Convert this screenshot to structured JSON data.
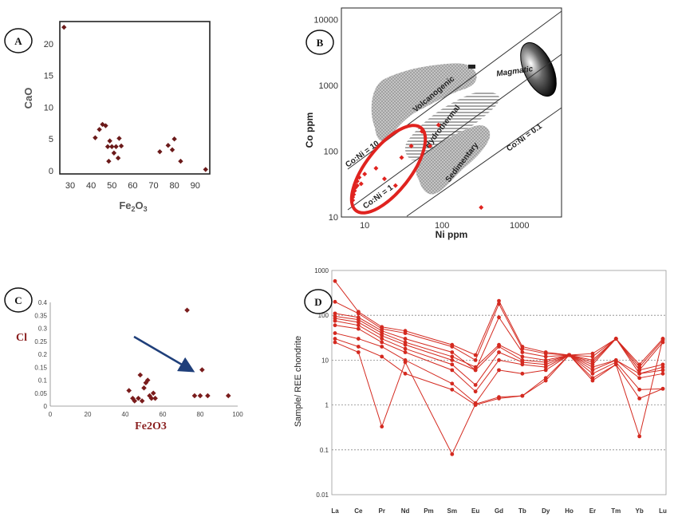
{
  "chart_data": [
    {
      "panel": "A",
      "type": "scatter",
      "xlabel": "Fe2O3",
      "ylabel": "CaO",
      "xlim": [
        25,
        97
      ],
      "ylim": [
        -0.5,
        23.5
      ],
      "xticks": [
        30,
        40,
        50,
        60,
        70,
        80,
        90
      ],
      "yticks": [
        0,
        5,
        10,
        15,
        20
      ],
      "marker_color": "#6b1a1a",
      "points": [
        {
          "x": 27,
          "y": 22.6
        },
        {
          "x": 42,
          "y": 5.2
        },
        {
          "x": 44,
          "y": 6.5
        },
        {
          "x": 45.5,
          "y": 7.3
        },
        {
          "x": 47,
          "y": 7.1
        },
        {
          "x": 48,
          "y": 3.8
        },
        {
          "x": 48.5,
          "y": 1.5
        },
        {
          "x": 49,
          "y": 4.7
        },
        {
          "x": 50,
          "y": 3.8
        },
        {
          "x": 51,
          "y": 2.8
        },
        {
          "x": 52,
          "y": 3.8
        },
        {
          "x": 53.5,
          "y": 5.1
        },
        {
          "x": 54.5,
          "y": 3.9
        },
        {
          "x": 53,
          "y": 2.0
        },
        {
          "x": 73,
          "y": 3.0
        },
        {
          "x": 77,
          "y": 4.0
        },
        {
          "x": 79,
          "y": 3.3
        },
        {
          "x": 80,
          "y": 5.0
        },
        {
          "x": 83,
          "y": 1.5
        },
        {
          "x": 95,
          "y": 0.2
        }
      ]
    },
    {
      "panel": "B",
      "type": "scatter",
      "xlabel": "Ni ppm",
      "ylabel": "Co ppm",
      "log_x": true,
      "log_y": true,
      "xlim": [
        5,
        3500
      ],
      "ylim": [
        10,
        15000
      ],
      "xticks": [
        10,
        100,
        1000
      ],
      "yticks": [
        10,
        100,
        1000,
        10000
      ],
      "fields": [
        "Volcanogenic",
        "Hydrothermal",
        "Sedimentary",
        "Magmatic"
      ],
      "ratio_lines": [
        "Co:Ni = 10",
        "Co:Ni = 1",
        "Co:Ni = 0.1"
      ],
      "marker_color": "#e0231f",
      "points": [
        {
          "x": 7,
          "y": 18
        },
        {
          "x": 7,
          "y": 20
        },
        {
          "x": 7.2,
          "y": 22
        },
        {
          "x": 7.4,
          "y": 25
        },
        {
          "x": 7.6,
          "y": 28
        },
        {
          "x": 8,
          "y": 30
        },
        {
          "x": 8,
          "y": 35
        },
        {
          "x": 8.5,
          "y": 40
        },
        {
          "x": 9,
          "y": 32
        },
        {
          "x": 10,
          "y": 45
        },
        {
          "x": 14,
          "y": 55
        },
        {
          "x": 18,
          "y": 38
        },
        {
          "x": 25,
          "y": 30
        },
        {
          "x": 30,
          "y": 80
        },
        {
          "x": 40,
          "y": 120
        },
        {
          "x": 55,
          "y": 200
        },
        {
          "x": 70,
          "y": 120
        },
        {
          "x": 90,
          "y": 250
        },
        {
          "x": 320,
          "y": 14
        }
      ]
    },
    {
      "panel": "C",
      "type": "scatter",
      "xlabel": "Fe2O3",
      "ylabel": "Cl",
      "xlim": [
        0,
        100
      ],
      "ylim": [
        0,
        0.4
      ],
      "xticks": [
        0,
        20,
        40,
        60,
        80,
        100
      ],
      "yticks": [
        0,
        0.05,
        0.1,
        0.15,
        0.2,
        0.25,
        0.3,
        0.35,
        0.4
      ],
      "ytick_labels": [
        "0",
        "0.05",
        "0.1",
        "0.15",
        "0.2",
        "0.25",
        "0.3",
        "0.35",
        "0.4"
      ],
      "marker_color": "#7a1c1c",
      "arrow_color": "#1f3f7a",
      "points": [
        {
          "x": 42,
          "y": 0.06
        },
        {
          "x": 44,
          "y": 0.03
        },
        {
          "x": 45,
          "y": 0.02
        },
        {
          "x": 47,
          "y": 0.03
        },
        {
          "x": 48,
          "y": 0.12
        },
        {
          "x": 49,
          "y": 0.02
        },
        {
          "x": 50,
          "y": 0.07
        },
        {
          "x": 51,
          "y": 0.09
        },
        {
          "x": 52,
          "y": 0.1
        },
        {
          "x": 53,
          "y": 0.04
        },
        {
          "x": 54,
          "y": 0.03
        },
        {
          "x": 55,
          "y": 0.05
        },
        {
          "x": 56,
          "y": 0.03
        },
        {
          "x": 73,
          "y": 0.37
        },
        {
          "x": 77,
          "y": 0.04
        },
        {
          "x": 80,
          "y": 0.04
        },
        {
          "x": 81,
          "y": 0.14
        },
        {
          "x": 84,
          "y": 0.04
        },
        {
          "x": 95,
          "y": 0.04
        }
      ]
    },
    {
      "panel": "D",
      "type": "line",
      "ylabel": "Sample/ REE chondrite",
      "log_y": true,
      "ylim": [
        0.01,
        1000
      ],
      "yticks": [
        0.01,
        0.1,
        1,
        10,
        100,
        1000
      ],
      "ytick_labels": [
        "0.01",
        "0.1",
        "1",
        "10",
        "100",
        "1000"
      ],
      "categories": [
        "La",
        "Ce",
        "Pr",
        "Nd",
        "Pm",
        "Sm",
        "Eu",
        "Gd",
        "Tb",
        "Dy",
        "Ho",
        "Er",
        "Tm",
        "Yb",
        "Lu"
      ],
      "line_color": "#d42a20",
      "series": [
        {
          "values": [
            580,
            120,
            55,
            45,
            null,
            22,
            13,
            210,
            20,
            15,
            13,
            14,
            30,
            8,
            30
          ]
        },
        {
          "values": [
            200,
            110,
            50,
            40,
            null,
            20,
            10,
            180,
            18,
            14,
            13,
            12,
            30,
            7,
            28
          ]
        },
        {
          "values": [
            110,
            90,
            45,
            30,
            null,
            15,
            6,
            90,
            15,
            12,
            13,
            10,
            30,
            6,
            25
          ]
        },
        {
          "values": [
            95,
            80,
            40,
            25,
            null,
            12,
            7,
            22,
            12,
            10,
            13,
            9,
            30,
            6,
            8
          ]
        },
        {
          "values": [
            85,
            70,
            35,
            22,
            null,
            10,
            6,
            20,
            10,
            9,
            13,
            8,
            30,
            5,
            7
          ]
        },
        {
          "values": [
            75,
            60,
            30,
            18,
            null,
            8,
            2.8,
            15,
            9,
            8,
            13,
            7,
            10,
            5,
            6
          ]
        },
        {
          "values": [
            60,
            50,
            25,
            15,
            null,
            6,
            2,
            10,
            8,
            7,
            13,
            6,
            10,
            4,
            5
          ]
        },
        {
          "values": [
            40,
            30,
            20,
            10,
            null,
            3,
            1.1,
            6,
            5,
            6,
            13,
            5,
            9,
            2.2,
            2.3
          ]
        },
        {
          "values": [
            30,
            20,
            12,
            5,
            null,
            2.2,
            1,
            1.4,
            1.6,
            3.5,
            13,
            4,
            8,
            1.4,
            2.3
          ]
        },
        {
          "values": [
            25,
            15,
            0.33,
            9,
            null,
            0.08,
            1.05,
            1.5,
            1.6,
            4,
            13,
            3.5,
            8,
            0.2,
            30
          ]
        }
      ]
    }
  ]
}
